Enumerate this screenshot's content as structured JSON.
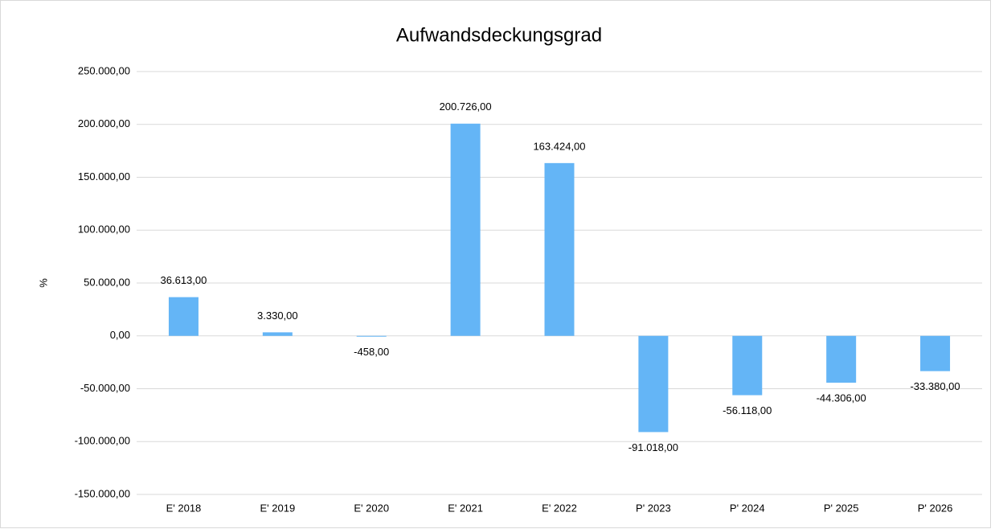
{
  "chart_data": {
    "type": "bar",
    "title": "Aufwandsdeckungsgrad",
    "y_label": "%",
    "categories": [
      "E' 2018",
      "E' 2019",
      "E' 2020",
      "E' 2021",
      "E' 2022",
      "P' 2023",
      "P' 2024",
      "P' 2025",
      "P' 2026"
    ],
    "values": [
      36613,
      3330,
      -458,
      200726,
      163424,
      -91018,
      -56118,
      -44306,
      -33380
    ],
    "value_labels": [
      "36.613,00",
      "3.330,00",
      "-458,00",
      "200.726,00",
      "163.424,00",
      "-91.018,00",
      "-56.118,00",
      "-44.306,00",
      "-33.380,00"
    ],
    "color": "#64b5f6",
    "ylim": [
      -150000,
      250000
    ],
    "yticks": [
      {
        "value": -150000,
        "label": "-150.000,00"
      },
      {
        "value": -100000,
        "label": "-100.000,00"
      },
      {
        "value": -50000,
        "label": "-50.000,00"
      },
      {
        "value": 0,
        "label": "0,00"
      },
      {
        "value": 50000,
        "label": "50.000,00"
      },
      {
        "value": 100000,
        "label": "100.000,00"
      },
      {
        "value": 150000,
        "label": "150.000,00"
      },
      {
        "value": 200000,
        "label": "200.000,00"
      },
      {
        "value": 250000,
        "label": "250.000,00"
      }
    ],
    "grid": true
  }
}
